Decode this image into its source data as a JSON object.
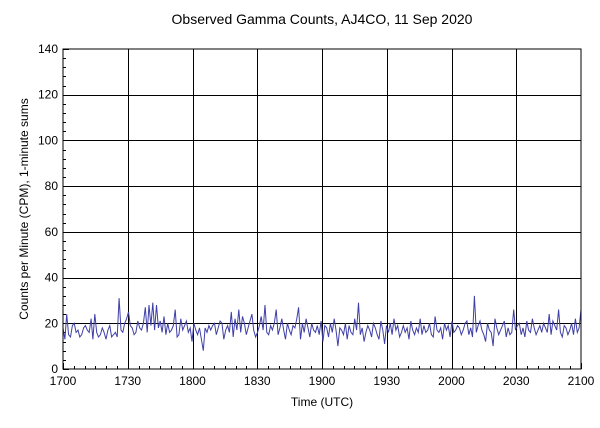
{
  "chart_data": {
    "type": "line",
    "title": "Observed Gamma Counts, AJ4CO, 11 Sep 2020",
    "xlabel": "Time (UTC)",
    "ylabel": "Counts per Minute (CPM), 1-minute sums",
    "x_start_utc": "1700",
    "x_end_utc": "2100",
    "x_ticks": [
      {
        "minute": 0,
        "label": "1700"
      },
      {
        "minute": 30,
        "label": "1730"
      },
      {
        "minute": 60,
        "label": "1800"
      },
      {
        "minute": 90,
        "label": "1830"
      },
      {
        "minute": 120,
        "label": "1900"
      },
      {
        "minute": 150,
        "label": "1930"
      },
      {
        "minute": 180,
        "label": "2000"
      },
      {
        "minute": 210,
        "label": "2030"
      },
      {
        "minute": 240,
        "label": "2100"
      }
    ],
    "ylim": [
      0,
      140
    ],
    "y_ticks": [
      0,
      20,
      40,
      60,
      80,
      100,
      120,
      140
    ],
    "grid": true,
    "series": [
      {
        "color": "#3f3fa8",
        "values": [
          18,
          13,
          24,
          15,
          14,
          19,
          20,
          16,
          17,
          14,
          15,
          18,
          19,
          17,
          16,
          22,
          13,
          24,
          16,
          14,
          15,
          18,
          16,
          13,
          17,
          19,
          14,
          15,
          16,
          14,
          31,
          17,
          16,
          20,
          22,
          25,
          19,
          18,
          15,
          16,
          21,
          18,
          17,
          20,
          27,
          16,
          28,
          19,
          29,
          17,
          28,
          18,
          21,
          16,
          23,
          15,
          20,
          16,
          17,
          19,
          26,
          14,
          15,
          22,
          17,
          19,
          21,
          16,
          18,
          12,
          20,
          17,
          15,
          18,
          13,
          8,
          18,
          16,
          19,
          17,
          19,
          20,
          15,
          18,
          21,
          20,
          13,
          17,
          19,
          16,
          25,
          14,
          22,
          17,
          26,
          16,
          23,
          20,
          15,
          18,
          21,
          24,
          17,
          14,
          16,
          19,
          23,
          17,
          28,
          16,
          15,
          19,
          17,
          20,
          26,
          15,
          18,
          22,
          17,
          13,
          20,
          17,
          15,
          19,
          18,
          22,
          27,
          13,
          20,
          16,
          22,
          18,
          14,
          20,
          17,
          16,
          19,
          15,
          21,
          12,
          19,
          18,
          14,
          20,
          16,
          22,
          17,
          10,
          18,
          17,
          15,
          20,
          13,
          19,
          16,
          15,
          22,
          17,
          29,
          15,
          18,
          12,
          16,
          19,
          17,
          14,
          20,
          18,
          15,
          13,
          21,
          17,
          11,
          19,
          16,
          20,
          15,
          22,
          17,
          19,
          14,
          16,
          19,
          16,
          18,
          13,
          21,
          17,
          15,
          18,
          16,
          22,
          15,
          19,
          16,
          17,
          20,
          15,
          14,
          23,
          17,
          16,
          18,
          13,
          20,
          17,
          19,
          14,
          21,
          16,
          17,
          19,
          18,
          15,
          17,
          20,
          21,
          15,
          18,
          14,
          32,
          16,
          19,
          21,
          17,
          15,
          12,
          20,
          17,
          16,
          10,
          22,
          18,
          15,
          17,
          19,
          21,
          14,
          18,
          15,
          16,
          26,
          17,
          19,
          20,
          15,
          18,
          14,
          21,
          17,
          16,
          22,
          18,
          15,
          17,
          19,
          16,
          20,
          18,
          16,
          24,
          15,
          21,
          19,
          17,
          26,
          16,
          14,
          19,
          18,
          15,
          17,
          20,
          15,
          22,
          16,
          18,
          26
        ]
      }
    ]
  }
}
